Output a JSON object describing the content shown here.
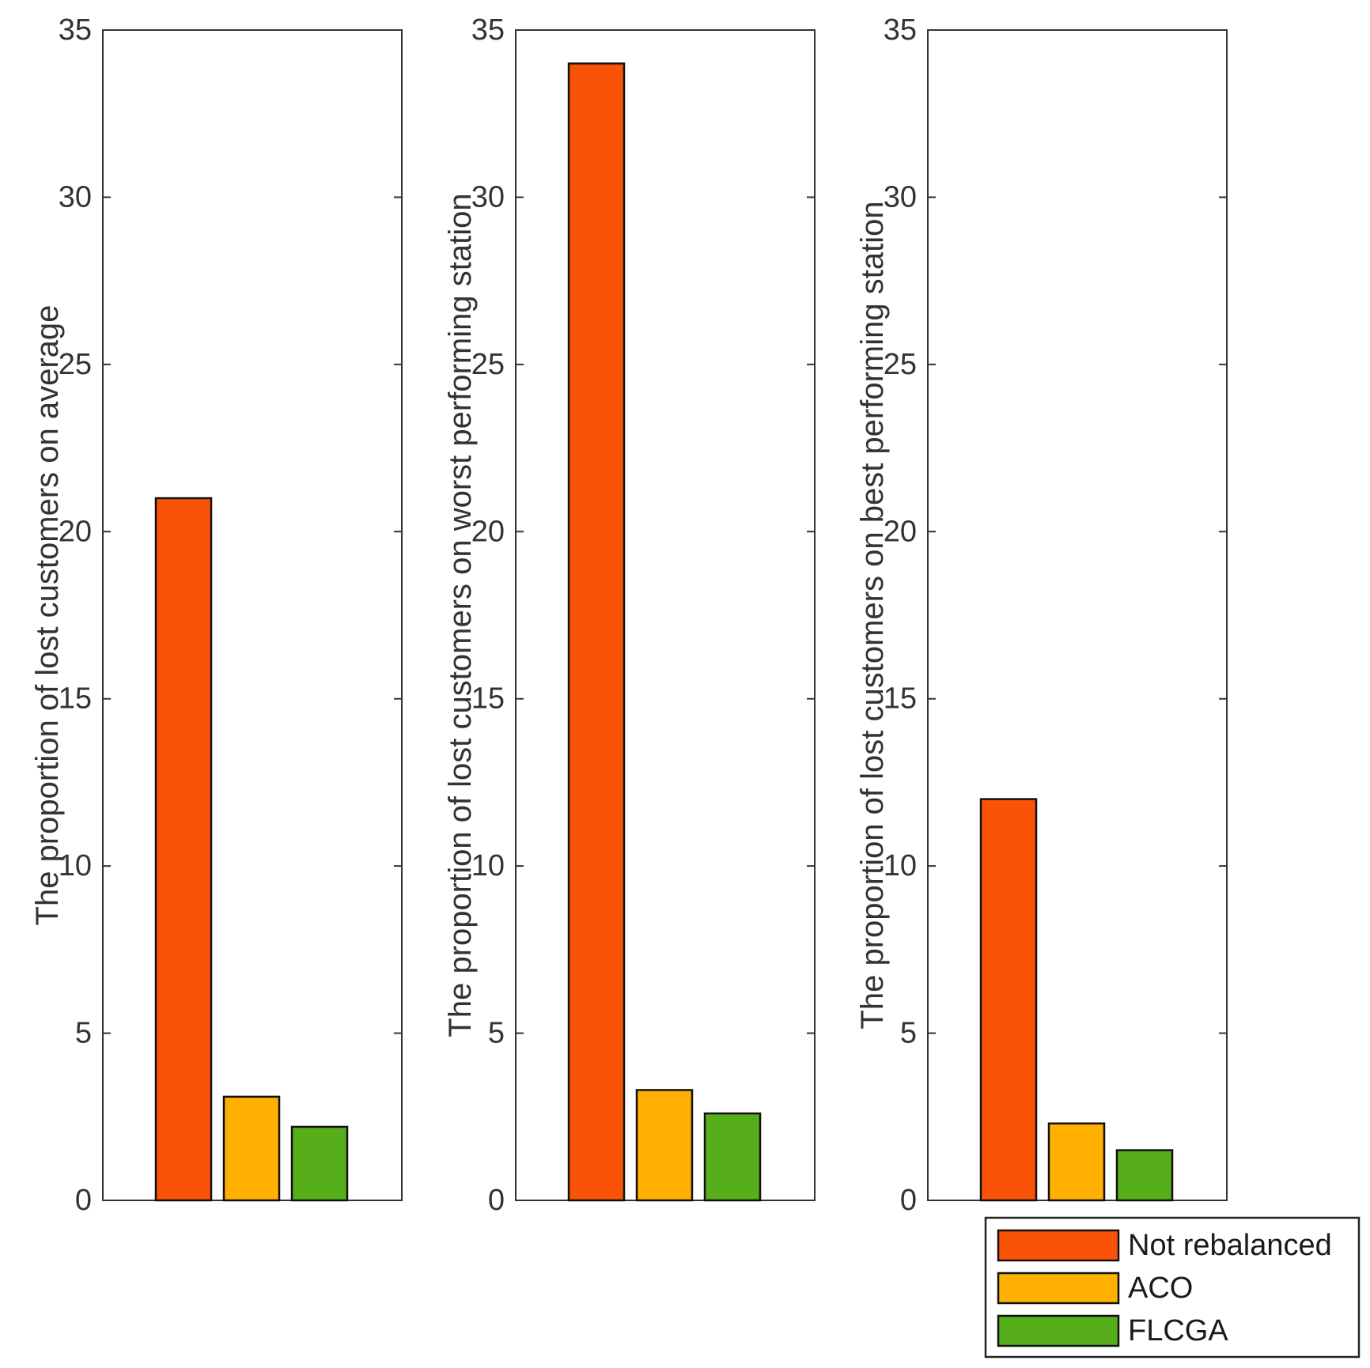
{
  "chart_data": [
    {
      "type": "bar",
      "categories": [
        "Not rebalanced",
        "ACO",
        "FLCGA"
      ],
      "values": [
        21,
        3.1,
        2.2
      ],
      "title": "",
      "xlabel": "",
      "ylabel": "The proportion of lost customers on average",
      "ylim": [
        0,
        35
      ],
      "yticks": [
        0,
        5,
        10,
        15,
        20,
        25,
        30,
        35
      ]
    },
    {
      "type": "bar",
      "categories": [
        "Not rebalanced",
        "ACO",
        "FLCGA"
      ],
      "values": [
        34,
        3.3,
        2.6
      ],
      "title": "",
      "xlabel": "",
      "ylabel": "The proportion of lost customers on worst performing station",
      "ylim": [
        0,
        35
      ],
      "yticks": [
        0,
        5,
        10,
        15,
        20,
        25,
        30,
        35
      ]
    },
    {
      "type": "bar",
      "categories": [
        "Not rebalanced",
        "ACO",
        "FLCGA"
      ],
      "values": [
        12,
        2.3,
        1.5
      ],
      "title": "",
      "xlabel": "",
      "ylabel": "The proportion of lost customers on best performing station",
      "ylim": [
        0,
        35
      ],
      "yticks": [
        0,
        5,
        10,
        15,
        20,
        25,
        30,
        35
      ]
    }
  ],
  "legend": {
    "placement": "bottom-right",
    "entries": [
      "Not rebalanced",
      "ACO",
      "FLCGA"
    ]
  },
  "colors": {
    "Not rebalanced": "#FA5207",
    "ACO": "#FFB000",
    "FLCGA": "#55AE1A"
  }
}
